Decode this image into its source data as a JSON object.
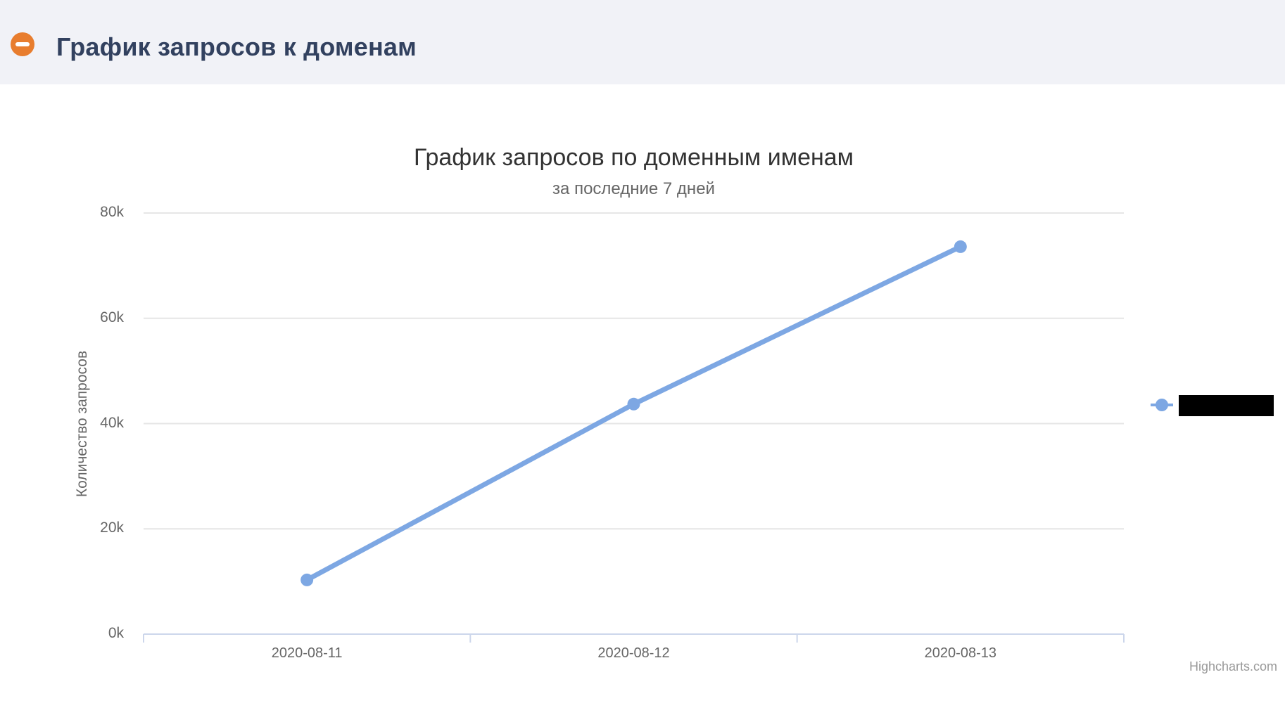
{
  "header": {
    "title": "График запросов к доменам"
  },
  "colors": {
    "header_background": "#f1f2f7",
    "header_title": "#32415f",
    "collapse_icon_orange": "#e87d2e",
    "series_blue": "#7da7e3",
    "grid_line": "#e6e6e6",
    "axis_line": "#ccd6eb",
    "label_gray": "#666666",
    "title_gray": "#333333",
    "credits_gray": "#999999",
    "legend_label_redaction": "#000000"
  },
  "chart_data": {
    "type": "line",
    "title": "График запросов по доменным именам",
    "subtitle": "за последние 7 дней",
    "categories": [
      "2020-08-11",
      "2020-08-12",
      "2020-08-13"
    ],
    "series": [
      {
        "name": "",
        "name_redacted": true,
        "values": [
          10300,
          43700,
          73600
        ],
        "color": "#7da7e3",
        "marker": "circle"
      }
    ],
    "xlabel": "",
    "ylabel": "Количество запросов",
    "ylim": [
      0,
      80000
    ],
    "yticks": [
      0,
      20000,
      40000,
      60000,
      80000
    ],
    "ytick_labels": [
      "0k",
      "20k",
      "40k",
      "60k",
      "80k"
    ],
    "grid": "horizontal",
    "legend_position": "right",
    "credits": "Highcharts.com"
  }
}
